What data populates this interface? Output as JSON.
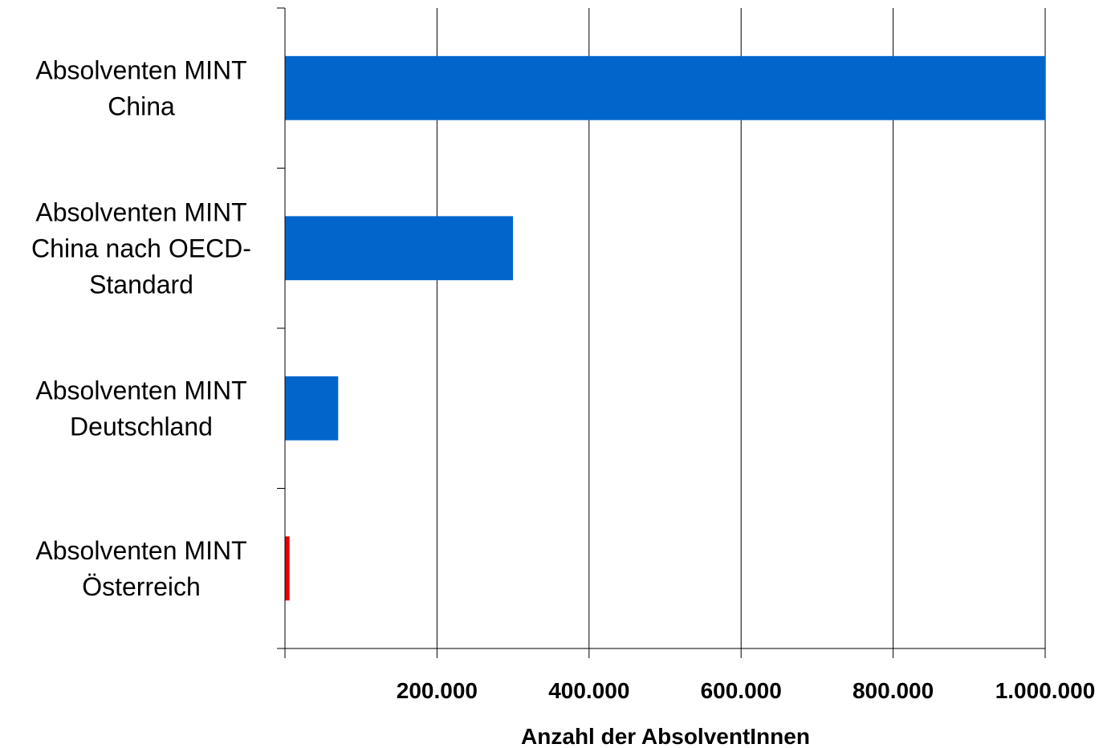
{
  "chart_data": {
    "type": "bar",
    "orientation": "horizontal",
    "categories": [
      [
        "Absolventen MINT",
        "China"
      ],
      [
        "Absolventen MINT",
        "China nach OECD-",
        "Standard"
      ],
      [
        "Absolventen MINT",
        "Deutschland"
      ],
      [
        "Absolventen MINT",
        "Österreich"
      ]
    ],
    "values": [
      1000000,
      300000,
      70000,
      6000
    ],
    "bar_colors": [
      "#0066CC",
      "#0066CC",
      "#0066CC",
      "#E60000"
    ],
    "xlabel": "Anzahl der AbsolventInnen",
    "xlim": [
      0,
      1000000
    ],
    "xticks": [
      200000,
      400000,
      600000,
      800000,
      1000000
    ],
    "xtick_labels": [
      "200.000",
      "400.000",
      "600.000",
      "800.000",
      "1.000.000"
    ],
    "grid": true
  }
}
